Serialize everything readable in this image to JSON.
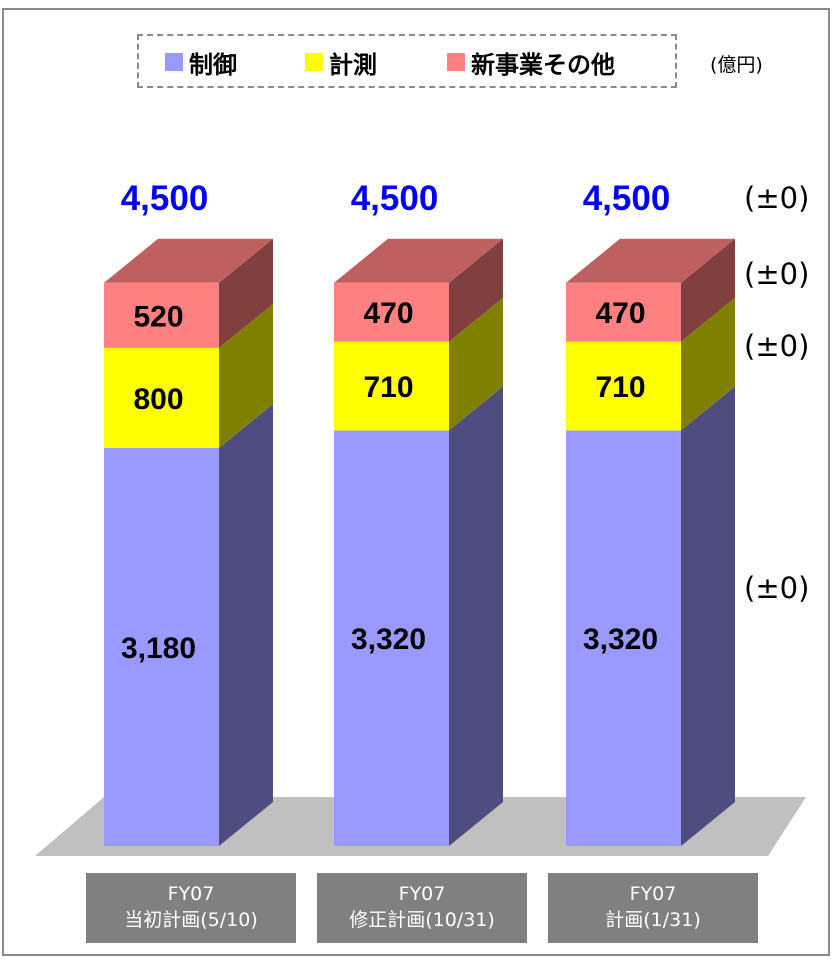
{
  "chart_data": {
    "type": "bar",
    "stacked": true,
    "categories": [
      [
        "FY07",
        "当初計画(5/10)"
      ],
      [
        "FY07",
        "修正計画(10/31)"
      ],
      [
        "FY07",
        "計画(1/31)"
      ]
    ],
    "series": [
      {
        "name": "制御",
        "values": [
          3180,
          3320,
          3320
        ],
        "color": "#9999ff"
      },
      {
        "name": "計測",
        "values": [
          800,
          710,
          710
        ],
        "color": "#ffff00"
      },
      {
        "name": "新事業その他",
        "values": [
          520,
          470,
          470
        ],
        "color": "#ff8080"
      }
    ],
    "totals": [
      "4,500",
      "4,500",
      "4,500"
    ],
    "value_labels": [
      [
        "3,180",
        "3,320",
        "3,320"
      ],
      [
        "800",
        "710",
        "710"
      ],
      [
        "520",
        "470",
        "470"
      ]
    ],
    "unit": "(億円)",
    "deltas": {
      "total": "(±0)",
      "other": "(±0)",
      "measure": "(±0)",
      "control": "(±0)"
    },
    "legend_position": "top",
    "grid": false
  }
}
